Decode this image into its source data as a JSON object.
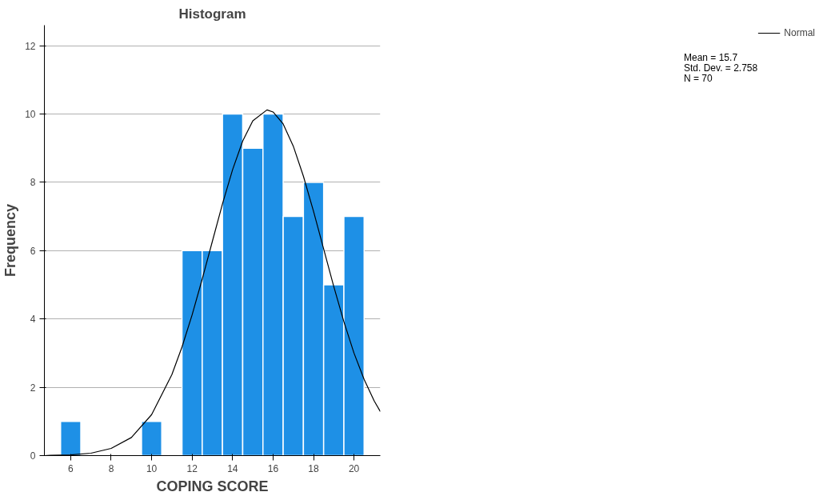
{
  "chart_data": {
    "type": "histogram",
    "title": "Histogram",
    "xlabel": "COPING SCORE",
    "ylabel": "Frequency",
    "bins": [
      5.5,
      6.5,
      7.5,
      8.5,
      9.5,
      10.5,
      11.5,
      12.5,
      13.5,
      14.5,
      15.5,
      16.5,
      17.5,
      18.5,
      19.5,
      20.5
    ],
    "values": [
      1,
      0,
      0,
      0,
      1,
      0,
      6,
      6,
      10,
      9,
      10,
      7,
      8,
      5,
      7
    ],
    "color": "#1e90e6",
    "series": [
      {
        "name": "Normal",
        "type": "line",
        "color": "#000000",
        "x": [
          4.7,
          5,
          6,
          7,
          8,
          9,
          10,
          11,
          11.5,
          12,
          12.5,
          13,
          13.5,
          14,
          14.5,
          15,
          15.7,
          16,
          16.5,
          17,
          17.5,
          18,
          18.5,
          19,
          19.5,
          20,
          20.5,
          21,
          21.3
        ],
        "values": [
          0.0,
          0.01,
          0.02,
          0.07,
          0.21,
          0.53,
          1.2,
          2.37,
          3.18,
          4.12,
          5.17,
          6.27,
          7.37,
          8.37,
          9.21,
          9.8,
          10.12,
          10.06,
          9.71,
          9.06,
          8.18,
          7.15,
          6.05,
          4.95,
          3.92,
          3.0,
          2.23,
          1.6,
          1.29
        ]
      }
    ],
    "xlim": [
      4.7,
      21.3
    ],
    "ylim": [
      0,
      12.6
    ],
    "xticks": [
      6,
      8,
      10,
      12,
      14,
      16,
      18,
      20
    ],
    "yticks": [
      0,
      2,
      4,
      6,
      8,
      10,
      12
    ],
    "grid": "y",
    "legend": "top right",
    "annotations": [
      "Mean = 15.7",
      "Std. Dev. = 2.758",
      "N = 70"
    ]
  }
}
